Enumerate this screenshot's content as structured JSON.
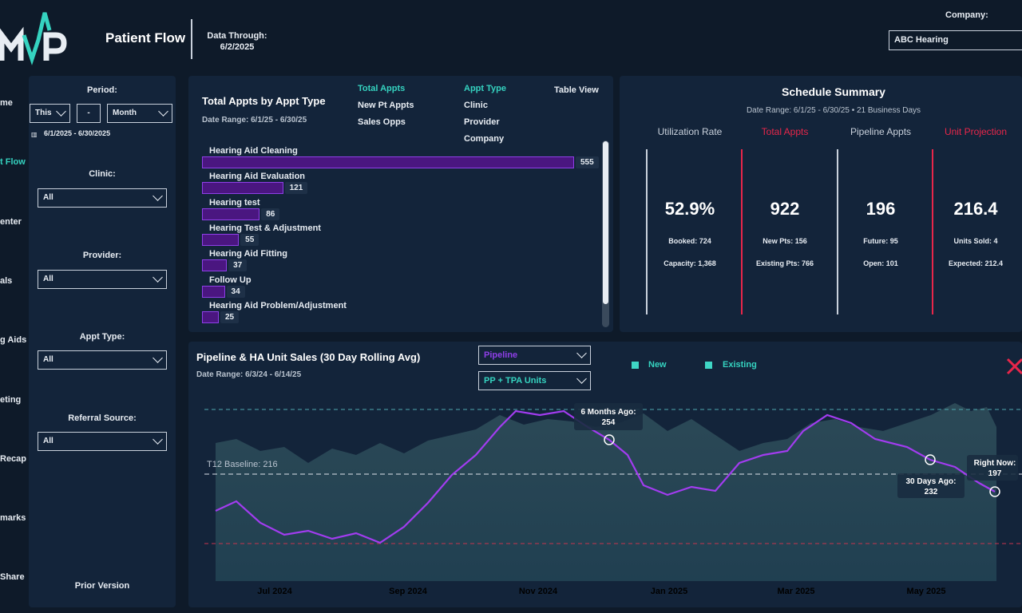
{
  "header": {
    "logo_text": "MVP",
    "app_title": "Patient Flow",
    "data_through_label": "Data Through:",
    "data_through_date": "6/2/2025",
    "company_label": "Company:",
    "company_value": "ABC Hearing"
  },
  "nav": {
    "items": [
      {
        "label": "me"
      },
      {
        "label": "t Flow",
        "active": true
      },
      {
        "label": "enter"
      },
      {
        "label": "als"
      },
      {
        "label": "g Aids"
      },
      {
        "label": "eting"
      },
      {
        "label": "Recap"
      },
      {
        "label": "marks"
      },
      {
        "label": "Share"
      }
    ]
  },
  "filters": {
    "period_label": "Period:",
    "period_this": "This",
    "period_dash": "-",
    "period_unit": "Month",
    "period_range": "6/1/2025 - 6/30/2025",
    "clinic_label": "Clinic:",
    "clinic_value": "All",
    "provider_label": "Provider:",
    "provider_value": "All",
    "appt_type_label": "Appt Type:",
    "appt_type_value": "All",
    "referral_label": "Referral Source:",
    "referral_value": "All",
    "prior_version": "Prior Version"
  },
  "appts": {
    "title": "Total Appts by Appt Type",
    "date_range": "Date Range: 6/1/25 - 6/30/25",
    "metric_options": [
      "Total Appts",
      "New Pt Appts",
      "Sales Opps"
    ],
    "group_options": [
      "Appt Type",
      "Clinic",
      "Provider",
      "Company"
    ],
    "table_view": "Table View",
    "chart_data": {
      "type": "bar",
      "categories": [
        "Hearing Aid Cleaning",
        "Hearing Aid Evaluation",
        "Hearing test",
        "Hearing Test & Adjustment",
        "Hearing Aid Fitting",
        "Follow Up",
        "Hearing Aid Problem/Adjustment"
      ],
      "values": [
        555,
        121,
        86,
        55,
        37,
        34,
        25
      ]
    }
  },
  "summary": {
    "title": "Schedule Summary",
    "date_range": "Date Range: 6/1/25 - 6/30/25 • 21 Business Days",
    "kpis": [
      {
        "header": "Utilization Rate",
        "value": "52.9%",
        "sub1": "Booked: 724",
        "sub2": "Capacity: 1,368",
        "color": "#c9d1dc",
        "line": "#c9d1dc"
      },
      {
        "header": "Total Appts",
        "value": "922",
        "sub1": "New Pts: 156",
        "sub2": "Existing Pts: 766",
        "color": "#e8264a",
        "line": "#e8264a"
      },
      {
        "header": "Pipeline Appts",
        "value": "196",
        "sub1": "Future: 95",
        "sub2": "Open: 101",
        "color": "#c9d1dc",
        "line": "#c9d1dc"
      },
      {
        "header": "Unit Projection",
        "value": "216.4",
        "sub1": "Units Sold: 4",
        "sub2": "Expected: 212.4",
        "color": "#e8264a",
        "line": "#e8264a"
      }
    ]
  },
  "pipeline": {
    "title": "Pipeline & HA Unit Sales (30 Day Rolling Avg)",
    "date_range": "Date Range: 6/3/24 - 6/14/25",
    "dd1": "Pipeline",
    "dd2": "PP + TPA Units",
    "legend": [
      "New",
      "Existing"
    ],
    "chart_data": {
      "type": "line",
      "x_ticks": [
        "Jul 2024",
        "Sep 2024",
        "Nov 2024",
        "Jan 2025",
        "Mar 2025",
        "May 2025"
      ],
      "baseline_label": "T12 Baseline: 216",
      "callouts": [
        {
          "label": "6 Months Ago:",
          "value": "254"
        },
        {
          "label": "30 Days Ago:",
          "value": "232"
        },
        {
          "label": "Right Now:",
          "value": "197"
        }
      ]
    }
  }
}
